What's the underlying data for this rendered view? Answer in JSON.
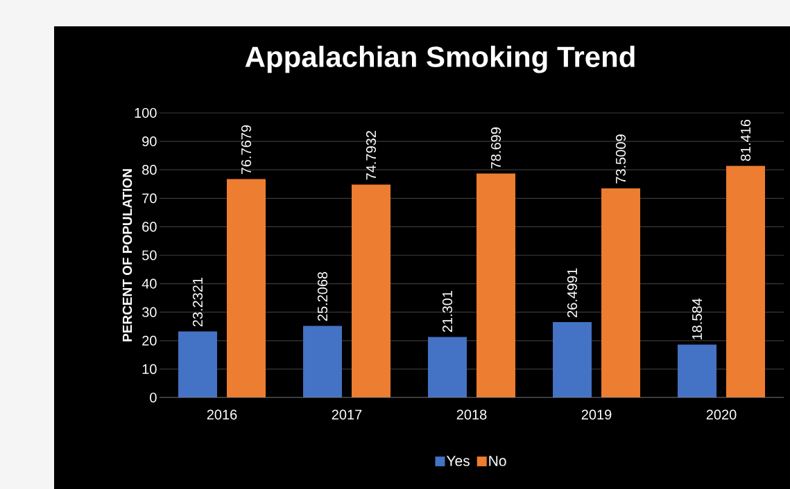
{
  "chart_data": {
    "type": "bar",
    "title": "Appalachian Smoking Trend",
    "ylabel": "PERCENT OF POPULATION",
    "categories": [
      "2016",
      "2017",
      "2018",
      "2019",
      "2020"
    ],
    "series": [
      {
        "name": "Yes",
        "color": "#4472c4",
        "values": [
          23.2321,
          25.2068,
          21.301,
          26.4991,
          18.584
        ]
      },
      {
        "name": "No",
        "color": "#ed7d31",
        "values": [
          76.7679,
          74.7932,
          78.699,
          73.5009,
          81.416
        ]
      }
    ],
    "ylim": [
      0,
      100
    ],
    "yticks": [
      0,
      10,
      20,
      30,
      40,
      50,
      60,
      70,
      80,
      90,
      100
    ],
    "grid": "y",
    "legend": "bottom",
    "data_labels": true
  }
}
